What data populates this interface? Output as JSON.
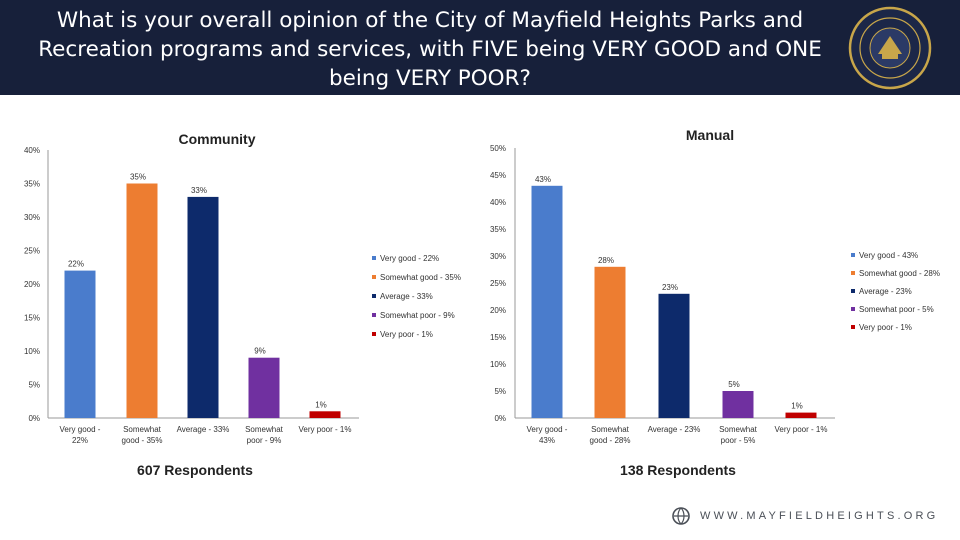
{
  "title": "What is your overall opinion of the City of Mayfield Heights Parks and Recreation programs and services, with FIVE being VERY GOOD and ONE being VERY POOR?",
  "footer": {
    "url": "WWW.MAYFIELDHEIGHTS.ORG"
  },
  "seal": {
    "text": "THE CITY OF MAYFIELD HEIGHTS OHIO",
    "icon": "city-seal-icon"
  },
  "chart_data": [
    {
      "type": "bar",
      "title": "Community",
      "categories": [
        "Very good - 22%",
        "Somewhat good - 35%",
        "Average - 33%",
        "Somewhat poor - 9%",
        "Very poor - 1%"
      ],
      "values": [
        22,
        35,
        33,
        9,
        1
      ],
      "value_labels": [
        "22%",
        "35%",
        "33%",
        "9%",
        "1%"
      ],
      "colors": [
        "#4a7ccc",
        "#ed7d31",
        "#0d2a6b",
        "#7030a0",
        "#c00000"
      ],
      "ylim": [
        0,
        40
      ],
      "yticks": [
        "0%",
        "5%",
        "10%",
        "15%",
        "20%",
        "25%",
        "30%",
        "35%",
        "40%"
      ],
      "legend": [
        "Very good - 22%",
        "Somewhat good - 35%",
        "Average - 33%",
        "Somewhat poor - 9%",
        "Very poor - 1%"
      ],
      "legend_position": "right",
      "respondents": "607 Respondents"
    },
    {
      "type": "bar",
      "title": "Manual",
      "categories": [
        "Very good - 43%",
        "Somewhat good - 28%",
        "Average - 23%",
        "Somewhat poor - 5%",
        "Very poor - 1%"
      ],
      "values": [
        43,
        28,
        23,
        5,
        1
      ],
      "value_labels": [
        "43%",
        "28%",
        "23%",
        "5%",
        "1%"
      ],
      "colors": [
        "#4a7ccc",
        "#ed7d31",
        "#0d2a6b",
        "#7030a0",
        "#c00000"
      ],
      "ylim": [
        0,
        50
      ],
      "yticks": [
        "0%",
        "5%",
        "10%",
        "15%",
        "20%",
        "25%",
        "30%",
        "35%",
        "40%",
        "45%",
        "50%"
      ],
      "legend": [
        "Very good - 43%",
        "Somewhat good - 28%",
        "Average - 23%",
        "Somewhat poor - 5%",
        "Very poor - 1%"
      ],
      "legend_position": "right",
      "respondents": "138 Respondents"
    }
  ]
}
